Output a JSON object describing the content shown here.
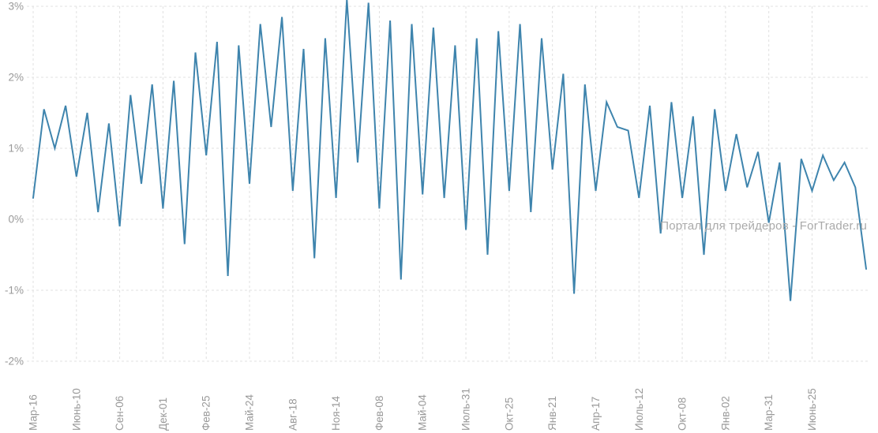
{
  "watermark": "Портал для трейдеров - ForTrader.ru",
  "chart_data": {
    "type": "line",
    "title": "",
    "xlabel": "",
    "ylabel": "",
    "line_color": "#3e84ad",
    "grid_color": "#e0e0e0",
    "label_color": "#999999",
    "ylim": [
      -2,
      3
    ],
    "grid": "dashed horizontal and vertical",
    "legend": "none",
    "y_ticks": [
      {
        "label": "3%",
        "value": 3
      },
      {
        "label": "2%",
        "value": 2
      },
      {
        "label": "1%",
        "value": 1
      },
      {
        "label": "0%",
        "value": 0
      },
      {
        "label": "-1%",
        "value": -1
      },
      {
        "label": "-2%",
        "value": -2
      }
    ],
    "x_tick_labels": [
      "Мар-16",
      "Июнь-10",
      "Сен-06",
      "Дек-01",
      "Фев-25",
      "Май-24",
      "Авг-18",
      "Ноя-14",
      "Фев-08",
      "Май-04",
      "Июль-31",
      "Окт-25",
      "Янв-21",
      "Апр-17",
      "Июль-12",
      "Окт-08",
      "Янв-02",
      "Мар-31",
      "Июнь-25"
    ],
    "x_tick_every": 4,
    "values": [
      0.3,
      1.55,
      1.0,
      1.6,
      0.6,
      1.5,
      0.1,
      1.35,
      -0.1,
      1.75,
      0.5,
      1.9,
      0.15,
      1.95,
      -0.35,
      2.35,
      0.9,
      2.5,
      -0.8,
      2.45,
      0.5,
      2.75,
      1.3,
      2.85,
      0.4,
      2.4,
      -0.55,
      2.55,
      0.3,
      3.1,
      0.8,
      3.05,
      0.15,
      2.8,
      -0.85,
      2.75,
      0.35,
      2.7,
      0.3,
      2.45,
      -0.15,
      2.55,
      -0.5,
      2.65,
      0.4,
      2.75,
      0.1,
      2.55,
      0.7,
      2.05,
      -1.05,
      1.9,
      0.4,
      1.65,
      1.3,
      1.25,
      0.3,
      1.6,
      -0.2,
      1.65,
      0.3,
      1.45,
      -0.5,
      1.55,
      0.4,
      1.2,
      0.45,
      0.95,
      -0.05,
      0.8,
      -1.15,
      0.85,
      0.4,
      0.9,
      0.55,
      0.8,
      0.45,
      -0.7
    ]
  }
}
